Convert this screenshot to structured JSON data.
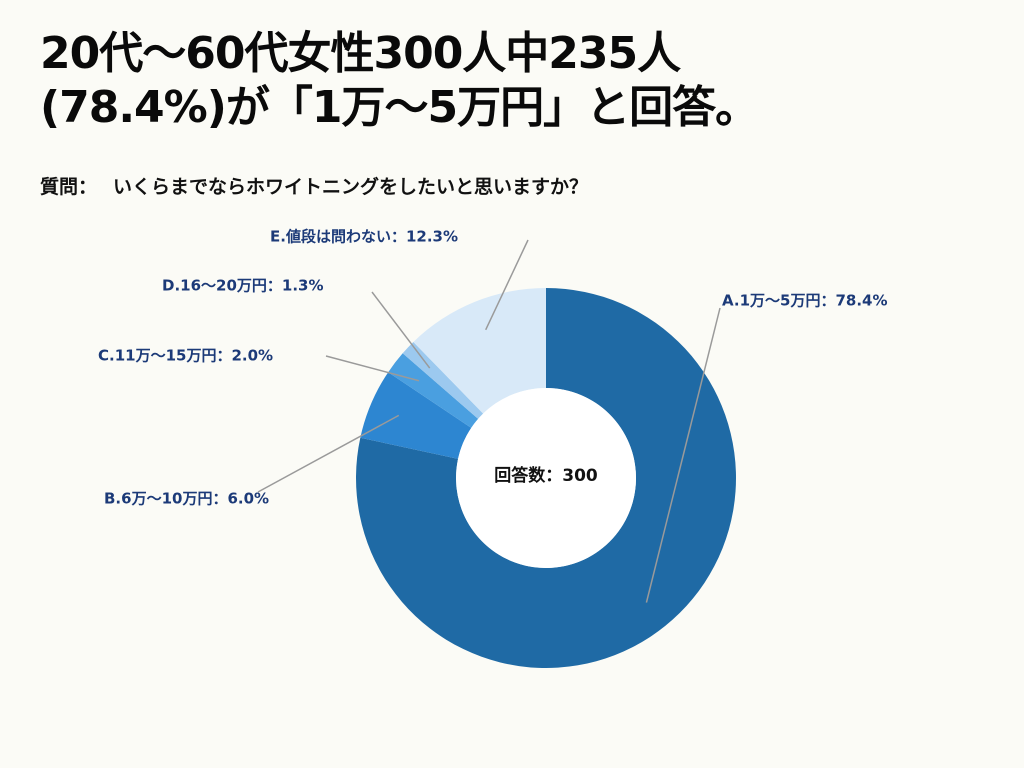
{
  "title": {
    "line1": "20代〜60代女性300人中235人",
    "line2": "(78.4%)が「1万〜5万円」と回答。"
  },
  "question": {
    "prefix": "質問：",
    "text": "いくらまでならホワイトニングをしたいと思いますか？"
  },
  "chart_data": {
    "type": "pie",
    "variant": "donut",
    "center_label": "回答数：300",
    "categories": [
      "A.1万〜5万円",
      "B.6万〜10万円",
      "C.11万〜15万円",
      "D.16〜20万円",
      "E.値段は問わない"
    ],
    "values": [
      78.4,
      6.0,
      2.0,
      1.3,
      12.3
    ],
    "labels": [
      "A.1万〜5万円：78.4%",
      "B.6万〜10万円：6.0%",
      "C.11万〜15万円：2.0%",
      "D.16〜20万円：1.3%",
      "E.値段は問わない：12.3%"
    ],
    "colors": [
      "#1f6aa5",
      "#2d86d1",
      "#4a9fe0",
      "#9cc9ef",
      "#d8e9f8"
    ],
    "label_color": "#1c3a78",
    "leader_color": "#9a9a9a"
  }
}
